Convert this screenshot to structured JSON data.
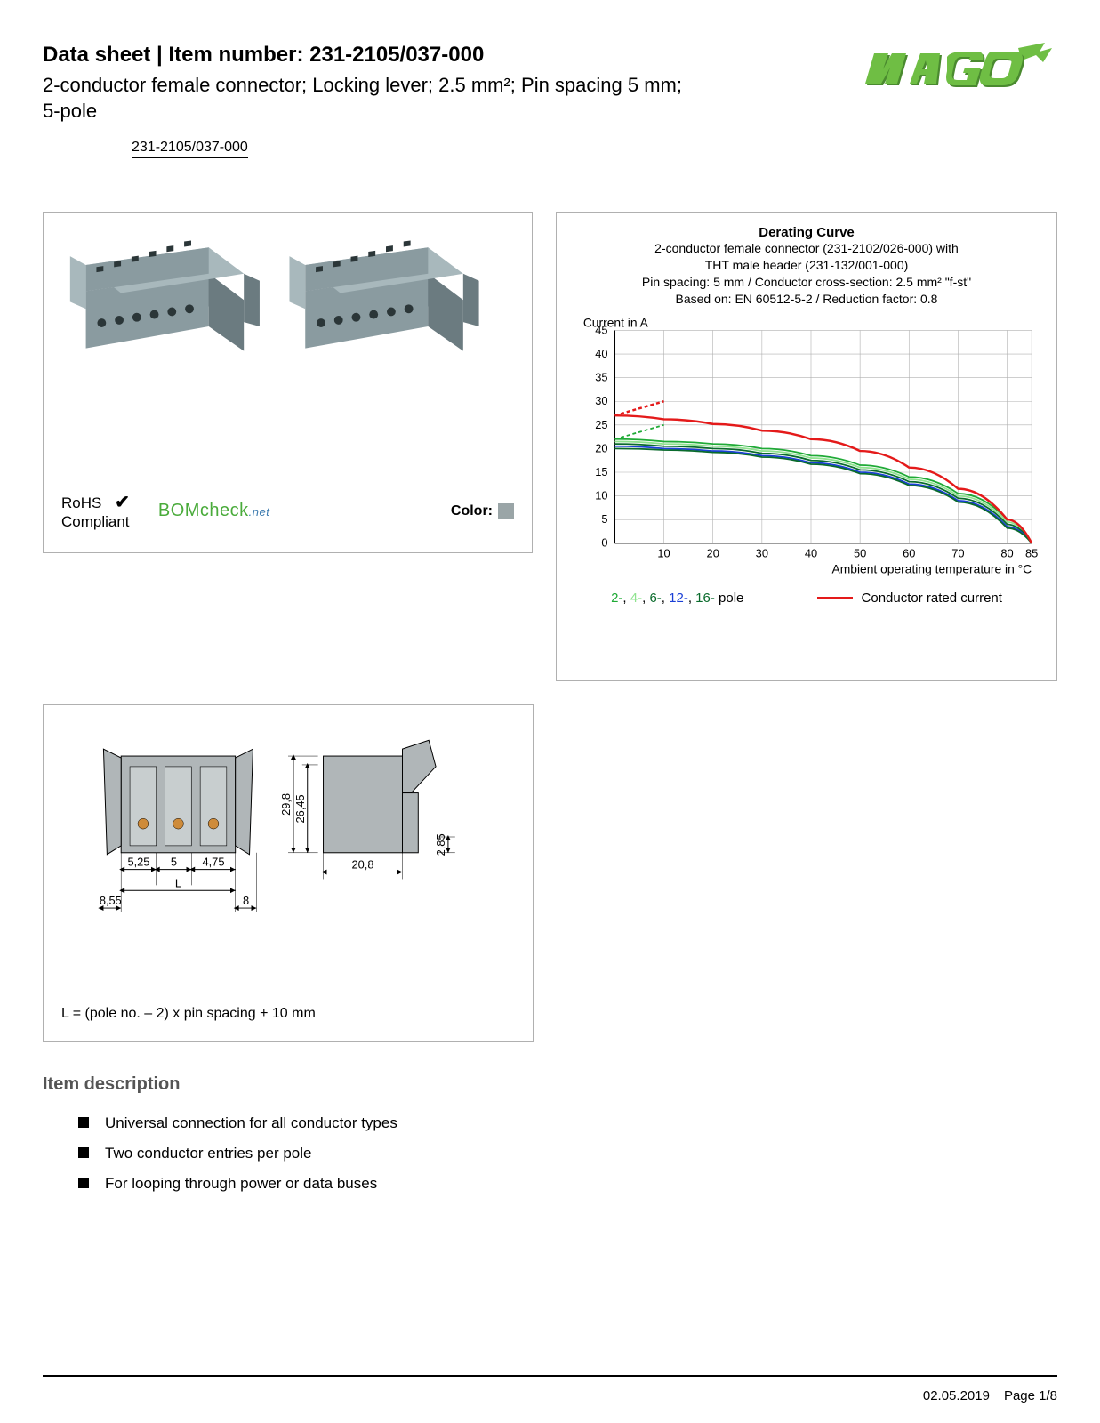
{
  "header": {
    "title": "Data sheet  |  Item number: 231-2105/037-000",
    "subtitle": "2-conductor female connector; Locking lever; 2.5 mm²; Pin spacing 5 mm; 5-pole",
    "item_link": "231-2105/037-000"
  },
  "logo": {
    "text": "WAGO",
    "color": "#6fbe44",
    "shadow": "#4a8a2f"
  },
  "product_panel": {
    "body_color": "#8a9ba0",
    "body_highlight": "#a8b8bc",
    "body_shadow": "#6b7b80",
    "rohs_line1": "RoHS",
    "rohs_line2": "Compliant",
    "check_glyph": "✔",
    "bomcheck_text": "BOMcheck",
    "bomcheck_suffix": ".net",
    "color_label": "Color:",
    "swatch_color": "#9aa5a7"
  },
  "chart": {
    "title": "Derating Curve",
    "sub1": "2-conductor female connector (231-2102/026-000) with",
    "sub2": "THT male header (231-132/001-000)",
    "sub3": "Pin spacing: 5 mm / Conductor cross-section: 2.5 mm² \"f-st\"",
    "sub4": "Based on: EN 60512-5-2 / Reduction factor: 0.8",
    "y_label": "Current in A",
    "x_label": "Ambient operating temperature in °C",
    "y_max": 45,
    "y_step": 5,
    "x_max": 85,
    "x_ticks": [
      10,
      20,
      30,
      40,
      50,
      60,
      70,
      80,
      85
    ],
    "grid_color": "#b0b0b0",
    "axis_color": "#000000",
    "series": {
      "pole2": {
        "color": "#1faa36",
        "dashed_above": true,
        "points": [
          [
            0,
            22
          ],
          [
            10,
            21.5
          ],
          [
            20,
            21
          ],
          [
            30,
            20
          ],
          [
            40,
            18.5
          ],
          [
            50,
            16.5
          ],
          [
            60,
            14
          ],
          [
            70,
            10.5
          ],
          [
            80,
            5
          ],
          [
            85,
            0
          ]
        ]
      },
      "pole4": {
        "color": "#8fe38f",
        "points": [
          [
            0,
            21.5
          ],
          [
            10,
            21
          ],
          [
            20,
            20.5
          ],
          [
            30,
            19.5
          ],
          [
            40,
            18
          ],
          [
            50,
            16
          ],
          [
            60,
            13.5
          ],
          [
            70,
            10
          ],
          [
            80,
            4.5
          ],
          [
            85,
            0
          ]
        ]
      },
      "pole6": {
        "color": "#0a6b2c",
        "points": [
          [
            0,
            21
          ],
          [
            10,
            20.5
          ],
          [
            20,
            20
          ],
          [
            30,
            19
          ],
          [
            40,
            17.5
          ],
          [
            50,
            15.5
          ],
          [
            60,
            13
          ],
          [
            70,
            9.5
          ],
          [
            80,
            4
          ],
          [
            85,
            0
          ]
        ]
      },
      "pole12": {
        "color": "#1a3fd6",
        "points": [
          [
            0,
            20.5
          ],
          [
            10,
            20
          ],
          [
            20,
            19.5
          ],
          [
            30,
            18.5
          ],
          [
            40,
            17
          ],
          [
            50,
            15
          ],
          [
            60,
            12.5
          ],
          [
            70,
            9
          ],
          [
            80,
            3.5
          ],
          [
            85,
            0
          ]
        ]
      },
      "pole16": {
        "color": "#0a6b2c",
        "points": [
          [
            0,
            20
          ],
          [
            10,
            19.7
          ],
          [
            20,
            19.2
          ],
          [
            30,
            18.2
          ],
          [
            40,
            16.7
          ],
          [
            50,
            14.7
          ],
          [
            60,
            12.2
          ],
          [
            70,
            8.7
          ],
          [
            80,
            3.2
          ],
          [
            85,
            0
          ]
        ]
      },
      "rated": {
        "color": "#e41a1a",
        "width": 2.5,
        "dashed_above": true,
        "points": [
          [
            0,
            27
          ],
          [
            10,
            26.2
          ],
          [
            20,
            25.2
          ],
          [
            30,
            23.8
          ],
          [
            40,
            22
          ],
          [
            50,
            19.5
          ],
          [
            60,
            16
          ],
          [
            70,
            11.5
          ],
          [
            80,
            5
          ],
          [
            85,
            0
          ]
        ]
      }
    },
    "legend_poles": [
      {
        "text": "2-",
        "color": "#1faa36"
      },
      {
        "text": "4-",
        "color": "#8fe38f"
      },
      {
        "text": "6-",
        "color": "#0a6b2c"
      },
      {
        "text": "12-",
        "color": "#1a3fd6"
      },
      {
        "text": "16-",
        "color": "#0a6b2c"
      }
    ],
    "legend_pole_suffix": " pole",
    "legend_rated": "Conductor rated current",
    "legend_rated_color": "#e41a1a"
  },
  "dims": {
    "body_color": "#b0b6b8",
    "line_color": "#000000",
    "accent_color": "#ce8b3a",
    "values": {
      "h1": "29,8",
      "h2": "26,45",
      "h3": "2,85",
      "w1": "5,25",
      "w2": "5",
      "w3": "4,75",
      "w4": "8,55",
      "w5": "L",
      "w6": "8",
      "side_w": "20,8"
    },
    "formula": "L = (pole no. – 2) x pin spacing + 10 mm"
  },
  "description": {
    "title": "Item description",
    "items": [
      "Universal connection for all conductor types",
      "Two conductor entries per pole",
      "For looping through power or data buses"
    ]
  },
  "footer": {
    "date": "02.05.2019",
    "page": "Page 1/8"
  }
}
